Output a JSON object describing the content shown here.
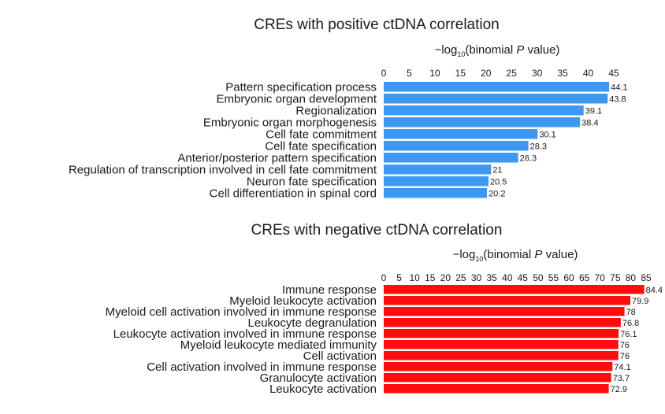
{
  "chart_data": [
    {
      "type": "bar",
      "orientation": "horizontal",
      "title": "CREs with positive ctDNA correlation",
      "xlabel": {
        "prefix": "−log",
        "subscript": "10",
        "main": "(binomial ",
        "italic": "P",
        "suffix": " value)"
      },
      "ylabel": "",
      "xlim": [
        0,
        45
      ],
      "xticks": [
        0,
        5,
        10,
        15,
        20,
        25,
        30,
        35,
        40,
        45
      ],
      "bar_color": "#3d98f0",
      "categories": [
        "Pattern specification process",
        "Embryonic organ development",
        "Regionalization",
        "Embryonic organ morphogenesis",
        "Cell fate commitment",
        "Cell fate specification",
        "Anterior/posterior pattern specification",
        "Regulation of transcription involved in cell fate commitment",
        "Neuron fate specification",
        "Cell differentiation in spinal cord"
      ],
      "values": [
        44.1,
        43.8,
        39.1,
        38.4,
        30.1,
        28.3,
        26.3,
        21,
        20.5,
        20.2
      ],
      "value_labels": [
        "44.1",
        "43.8",
        "39.1",
        "38.4",
        "30.1",
        "28.3",
        "26.3",
        "21",
        "20.5",
        "20.2"
      ]
    },
    {
      "type": "bar",
      "orientation": "horizontal",
      "title": "CREs with negative ctDNA correlation",
      "xlabel": {
        "prefix": "−log",
        "subscript": "10",
        "main": "(binomial ",
        "italic": "P",
        "suffix": " value)"
      },
      "ylabel": "",
      "xlim": [
        0,
        85
      ],
      "xticks": [
        0,
        5,
        10,
        15,
        20,
        25,
        30,
        35,
        40,
        45,
        50,
        55,
        60,
        65,
        70,
        75,
        80,
        85
      ],
      "bar_color": "#ff0d0d",
      "categories": [
        "Immune response",
        "Myeloid leukocyte activation",
        "Myeloid cell activation involved in immune response",
        "Leukocyte degranulation",
        "Leukocyte activation involved in immune response",
        "Myeloid leukocyte mediated immunity",
        "Cell activation",
        "Cell activation involved in immune response",
        "Granulocyte activation",
        "Leukocyte activation"
      ],
      "values": [
        84.4,
        79.9,
        78,
        76.8,
        76.1,
        76,
        76,
        74.1,
        73.7,
        72.9
      ],
      "value_labels": [
        "84.4",
        "79.9",
        "78",
        "76.8",
        "76.1",
        "76",
        "76",
        "74.1",
        "73.7",
        "72.9"
      ]
    }
  ]
}
